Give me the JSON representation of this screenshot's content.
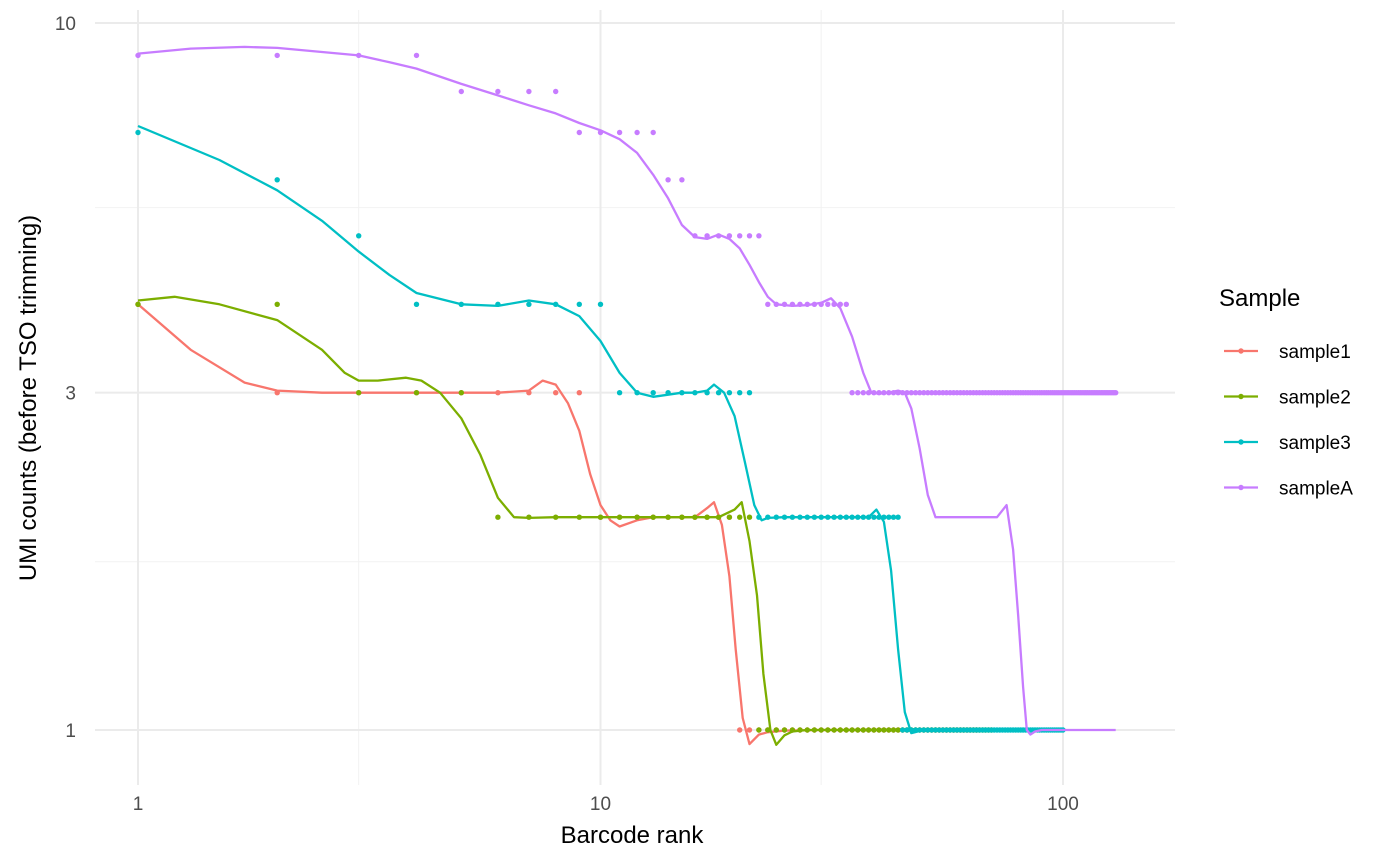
{
  "chart_data": {
    "type": "scatter",
    "title": "",
    "xlabel": "Barcode rank",
    "ylabel": "UMI counts (before TSO trimming)",
    "x_scale": "log10",
    "y_scale": "log10",
    "xlim": [
      0.85,
      150
    ],
    "ylim": [
      0.87,
      10.2
    ],
    "x_ticks": [
      1,
      10,
      100
    ],
    "x_tick_labels": [
      "1",
      "10",
      "100"
    ],
    "x_minor_ticks": [
      3,
      30
    ],
    "y_ticks": [
      1,
      3,
      10
    ],
    "y_tick_labels": [
      "1",
      "3",
      "10"
    ],
    "y_minor_ticks": [
      1.73,
      5.48
    ],
    "grid": true,
    "legend_title": "Sample",
    "legend_position": "right",
    "series": [
      {
        "name": "sample1",
        "color": "#F8766D",
        "points": {
          "values": [
            4,
            3,
            3,
            3,
            3,
            3,
            3,
            3,
            3,
            2,
            2,
            2,
            2,
            2,
            2,
            2,
            2,
            2,
            2,
            1
          ],
          "total": 65
        },
        "smooth": [
          [
            1,
            4.0
          ],
          [
            1.3,
            3.45
          ],
          [
            1.7,
            3.1
          ],
          [
            2,
            3.02
          ],
          [
            2.5,
            3.0
          ],
          [
            3,
            3.0
          ],
          [
            4,
            3.0
          ],
          [
            5,
            3.0
          ],
          [
            6,
            3.0
          ],
          [
            7,
            3.02
          ],
          [
            7.5,
            3.12
          ],
          [
            8,
            3.08
          ],
          [
            8.5,
            2.9
          ],
          [
            9,
            2.65
          ],
          [
            9.5,
            2.3
          ],
          [
            10,
            2.08
          ],
          [
            10.5,
            1.98
          ],
          [
            11,
            1.94
          ],
          [
            12,
            1.98
          ],
          [
            13,
            2.0
          ],
          [
            14,
            2.0
          ],
          [
            15,
            2.0
          ],
          [
            16,
            2.0
          ],
          [
            17,
            2.06
          ],
          [
            17.6,
            2.1
          ],
          [
            18.3,
            1.95
          ],
          [
            19,
            1.65
          ],
          [
            19.6,
            1.3
          ],
          [
            20.3,
            1.04
          ],
          [
            21,
            0.955
          ],
          [
            22,
            0.985
          ],
          [
            23,
            0.993
          ],
          [
            25,
            0.998
          ],
          [
            30,
            1.0
          ],
          [
            65,
            1.0
          ]
        ]
      },
      {
        "name": "sample2",
        "color": "#7CAE00",
        "points": {
          "values": [
            4,
            4,
            3,
            3,
            3,
            2,
            2,
            2,
            2,
            2,
            2,
            2,
            2,
            2,
            2,
            2,
            2,
            2,
            2,
            2,
            2,
            1
          ],
          "total": 70
        },
        "smooth": [
          [
            1,
            4.05
          ],
          [
            1.2,
            4.1
          ],
          [
            1.5,
            4.0
          ],
          [
            2,
            3.8
          ],
          [
            2.5,
            3.45
          ],
          [
            2.8,
            3.2
          ],
          [
            3,
            3.12
          ],
          [
            3.3,
            3.12
          ],
          [
            3.8,
            3.15
          ],
          [
            4.1,
            3.12
          ],
          [
            4.5,
            3.0
          ],
          [
            5,
            2.76
          ],
          [
            5.5,
            2.45
          ],
          [
            6,
            2.13
          ],
          [
            6.5,
            2.0
          ],
          [
            7,
            1.995
          ],
          [
            8,
            2.0
          ],
          [
            10,
            2.0
          ],
          [
            15,
            2.0
          ],
          [
            18,
            2.0
          ],
          [
            19.5,
            2.05
          ],
          [
            20.2,
            2.1
          ],
          [
            21,
            1.85
          ],
          [
            21.8,
            1.55
          ],
          [
            22.5,
            1.2
          ],
          [
            23.3,
            1.0
          ],
          [
            24,
            0.953
          ],
          [
            25,
            0.983
          ],
          [
            26,
            0.995
          ],
          [
            28,
            1.0
          ],
          [
            35,
            1.0
          ],
          [
            70,
            1.0
          ]
        ]
      },
      {
        "name": "sample3",
        "color": "#00BFC4",
        "points": {
          "values": [
            7,
            6,
            5,
            4,
            4,
            4,
            4,
            4,
            4,
            4,
            3,
            3,
            3,
            3,
            3,
            3,
            3,
            3,
            3,
            3,
            3,
            2,
            2,
            2,
            2,
            2,
            2,
            2,
            2,
            2,
            2,
            2,
            2,
            2,
            2,
            2,
            2,
            2,
            2,
            2,
            2,
            2,
            2,
            2,
            1
          ],
          "total": 100
        },
        "smooth": [
          [
            1,
            7.15
          ],
          [
            1.5,
            6.4
          ],
          [
            2,
            5.8
          ],
          [
            2.5,
            5.25
          ],
          [
            3,
            4.75
          ],
          [
            3.5,
            4.4
          ],
          [
            4,
            4.15
          ],
          [
            5,
            4.0
          ],
          [
            6,
            3.98
          ],
          [
            7,
            4.05
          ],
          [
            8,
            4.0
          ],
          [
            9,
            3.85
          ],
          [
            10,
            3.55
          ],
          [
            11,
            3.2
          ],
          [
            12,
            3.0
          ],
          [
            13,
            2.96
          ],
          [
            14,
            2.98
          ],
          [
            15,
            3.0
          ],
          [
            16,
            3.0
          ],
          [
            17,
            3.02
          ],
          [
            17.6,
            3.08
          ],
          [
            18.5,
            3.0
          ],
          [
            19.5,
            2.78
          ],
          [
            20.5,
            2.4
          ],
          [
            21.5,
            2.08
          ],
          [
            22.3,
            1.98
          ],
          [
            23,
            1.995
          ],
          [
            25,
            2.0
          ],
          [
            35,
            2.0
          ],
          [
            38,
            2.0
          ],
          [
            39.5,
            2.05
          ],
          [
            41,
            1.97
          ],
          [
            42.5,
            1.68
          ],
          [
            44,
            1.3
          ],
          [
            45.5,
            1.06
          ],
          [
            47,
            0.99
          ],
          [
            48.5,
            0.995
          ],
          [
            50,
            1.0
          ],
          [
            100,
            1.0
          ]
        ]
      },
      {
        "name": "sampleA",
        "color": "#C77CFF",
        "points": {
          "values": [
            9,
            9,
            9,
            9,
            8,
            8,
            8,
            8,
            7,
            7,
            7,
            7,
            7,
            6,
            6,
            5,
            5,
            5,
            5,
            5,
            5,
            5,
            4,
            4,
            4,
            4,
            4,
            4,
            4,
            4,
            4,
            4,
            4,
            4,
            3,
            3,
            3,
            3,
            3,
            3,
            3,
            3,
            3,
            3,
            3,
            3,
            3,
            3
          ],
          "total": 130
        },
        "smooth": [
          [
            1,
            9.05
          ],
          [
            1.3,
            9.2
          ],
          [
            1.7,
            9.25
          ],
          [
            2,
            9.22
          ],
          [
            2.5,
            9.1
          ],
          [
            3,
            9.0
          ],
          [
            3.5,
            8.8
          ],
          [
            4,
            8.62
          ],
          [
            5,
            8.2
          ],
          [
            6,
            7.9
          ],
          [
            7,
            7.65
          ],
          [
            8,
            7.45
          ],
          [
            9,
            7.22
          ],
          [
            10,
            7.05
          ],
          [
            11,
            6.85
          ],
          [
            12,
            6.55
          ],
          [
            13,
            6.1
          ],
          [
            14,
            5.65
          ],
          [
            15,
            5.18
          ],
          [
            16,
            4.98
          ],
          [
            17,
            4.95
          ],
          [
            18,
            5.02
          ],
          [
            19,
            4.95
          ],
          [
            20,
            4.8
          ],
          [
            21,
            4.55
          ],
          [
            22,
            4.3
          ],
          [
            23,
            4.1
          ],
          [
            24,
            4.0
          ],
          [
            26,
            3.98
          ],
          [
            28,
            3.99
          ],
          [
            30,
            4.02
          ],
          [
            31.5,
            4.08
          ],
          [
            33,
            3.95
          ],
          [
            35,
            3.6
          ],
          [
            37,
            3.2
          ],
          [
            38.5,
            3.0
          ],
          [
            40,
            2.99
          ],
          [
            42,
            3.0
          ],
          [
            44,
            3.02
          ],
          [
            45.5,
            3.0
          ],
          [
            47,
            2.85
          ],
          [
            49,
            2.5
          ],
          [
            51,
            2.15
          ],
          [
            53,
            2.0
          ],
          [
            56,
            2.0
          ],
          [
            65,
            2.0
          ],
          [
            72,
            2.0
          ],
          [
            75.5,
            2.08
          ],
          [
            78,
            1.8
          ],
          [
            80,
            1.45
          ],
          [
            82,
            1.15
          ],
          [
            83.5,
            1.0
          ],
          [
            85,
            0.985
          ],
          [
            87,
            0.995
          ],
          [
            90,
            1.0
          ],
          [
            130,
            1.0
          ]
        ]
      }
    ]
  }
}
